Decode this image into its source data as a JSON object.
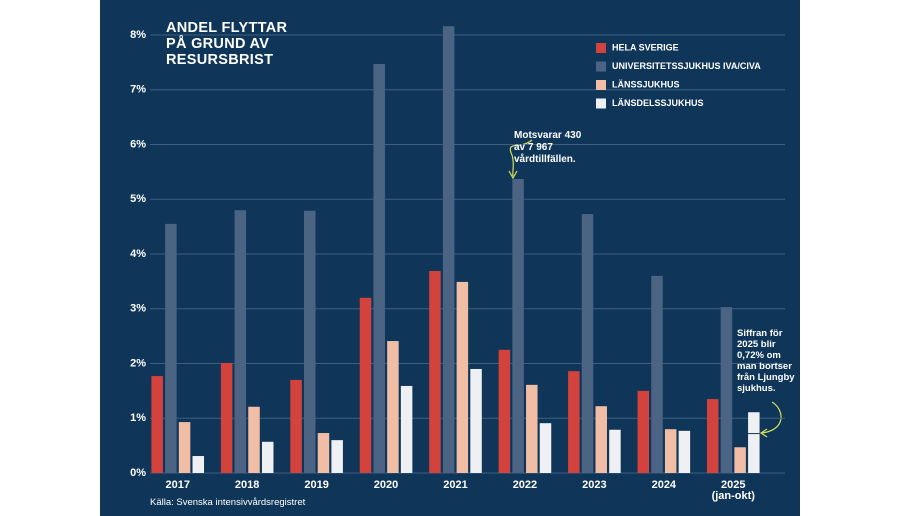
{
  "chart_data": {
    "type": "bar",
    "title": "ANDEL FLYTTAR PÅ GRUND AV RESURSBRIST",
    "categories": [
      "2017",
      "2018",
      "2019",
      "2020",
      "2021",
      "2022",
      "2023",
      "2024",
      "2025\n(jan-okt)"
    ],
    "series": [
      {
        "name": "HELA SVERIGE",
        "color": "#d4423e",
        "values": [
          1.77,
          2.01,
          1.7,
          3.2,
          3.69,
          2.25,
          1.86,
          1.5,
          1.35
        ]
      },
      {
        "name": "UNIVERSITETSSJUKHUS IVA/CIVA",
        "color": "#4b6484",
        "values": [
          4.55,
          4.8,
          4.79,
          7.47,
          8.16,
          5.37,
          4.73,
          3.6,
          3.03
        ]
      },
      {
        "name": "LÄNSSJUKHUS",
        "color": "#f1bea5",
        "values": [
          0.93,
          1.21,
          0.73,
          2.41,
          3.49,
          1.61,
          1.22,
          0.8,
          0.47
        ]
      },
      {
        "name": "LÄNSDELSSJUKHUS",
        "color": "#eef0f4",
        "values": [
          0.31,
          0.57,
          0.6,
          1.59,
          1.9,
          0.91,
          0.79,
          0.77,
          1.11
        ]
      }
    ],
    "ylim": [
      0,
      8
    ],
    "yticks": [
      {
        "value": 0,
        "label": "0%"
      },
      {
        "value": 1,
        "label": "1%"
      },
      {
        "value": 2,
        "label": "2%"
      },
      {
        "value": 3,
        "label": "3%"
      },
      {
        "value": 4,
        "label": "4%"
      },
      {
        "value": 5,
        "label": "5%"
      },
      {
        "value": 6,
        "label": "6%"
      },
      {
        "value": 7,
        "label": "7%"
      },
      {
        "value": 8,
        "label": "8%"
      }
    ],
    "grid": true,
    "legend": "top-right",
    "annotations": [
      {
        "text": "Motsvarar 430 av 7 967 vårdtillfällen."
      },
      {
        "text": "Siffran för 2025 blir 0,72% om man bortser från Ljungby sjukhus.",
        "value": 0.72
      }
    ],
    "source": "Källa: Svenska intensivvårdsregistret"
  }
}
